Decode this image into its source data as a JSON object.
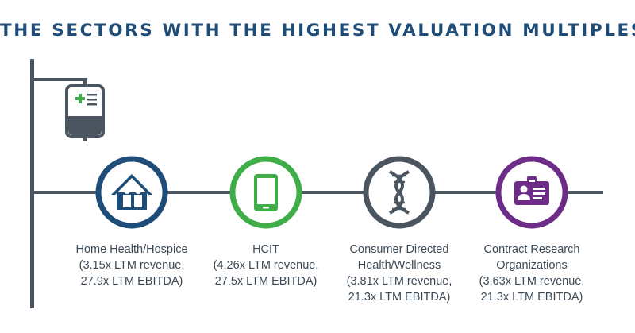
{
  "title": "THE SECTORS WITH THE HIGHEST VALUATION MULTIPLES",
  "colors": {
    "pole": "#4a5560",
    "navy": "#1f4d7a",
    "green": "#3fae49",
    "gray": "#4a5560",
    "purple": "#6d2c88"
  },
  "sectors": [
    {
      "icon": "home-family-icon",
      "color": "#1f4d7a",
      "lines": [
        "Home Health/Hospice",
        "(3.15x LTM revenue,",
        "27.9x LTM EBITDA)"
      ]
    },
    {
      "icon": "tablet-icon",
      "color": "#3fae49",
      "lines": [
        "HCIT",
        "(4.26x LTM revenue,",
        "27.5x LTM EBITDA)"
      ]
    },
    {
      "icon": "dna-icon",
      "color": "#4a5560",
      "lines": [
        "Consumer Directed",
        "Health/Wellness",
        "(3.81x LTM revenue,",
        "21.3x LTM EBITDA)"
      ]
    },
    {
      "icon": "id-badge-icon",
      "color": "#6d2c88",
      "lines": [
        "Contract Research",
        "Organizations",
        "(3.63x LTM revenue,",
        "21.3x LTM EBITDA)"
      ]
    }
  ]
}
